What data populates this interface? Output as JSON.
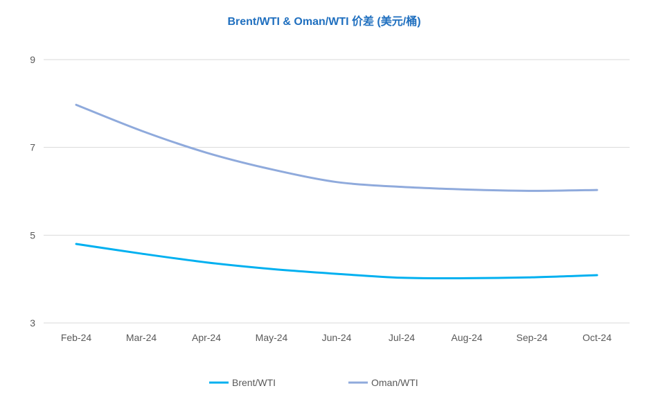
{
  "chart_data": {
    "type": "line",
    "title": "Brent/WTI & Oman/WTI 价差 (美元/桶)",
    "xlabel": "",
    "ylabel": "",
    "categories": [
      "Feb-24",
      "Mar-24",
      "Apr-24",
      "May-24",
      "Jun-24",
      "Jul-24",
      "Aug-24",
      "Sep-24",
      "Oct-24"
    ],
    "ylim": [
      3,
      9
    ],
    "yticks": [
      3,
      5,
      7,
      9
    ],
    "grid": true,
    "legend_position": "bottom",
    "series": [
      {
        "name": "Brent/WTI",
        "color": "#00b0f0",
        "values": [
          4.8,
          4.58,
          4.38,
          4.23,
          4.12,
          4.03,
          4.02,
          4.04,
          4.09
        ]
      },
      {
        "name": "Oman/WTI",
        "color": "#8faadc",
        "values": [
          7.97,
          7.38,
          6.88,
          6.5,
          6.21,
          6.1,
          6.04,
          6.01,
          6.03
        ]
      }
    ],
    "colors": {
      "title": "#1f6fbf"
    }
  }
}
